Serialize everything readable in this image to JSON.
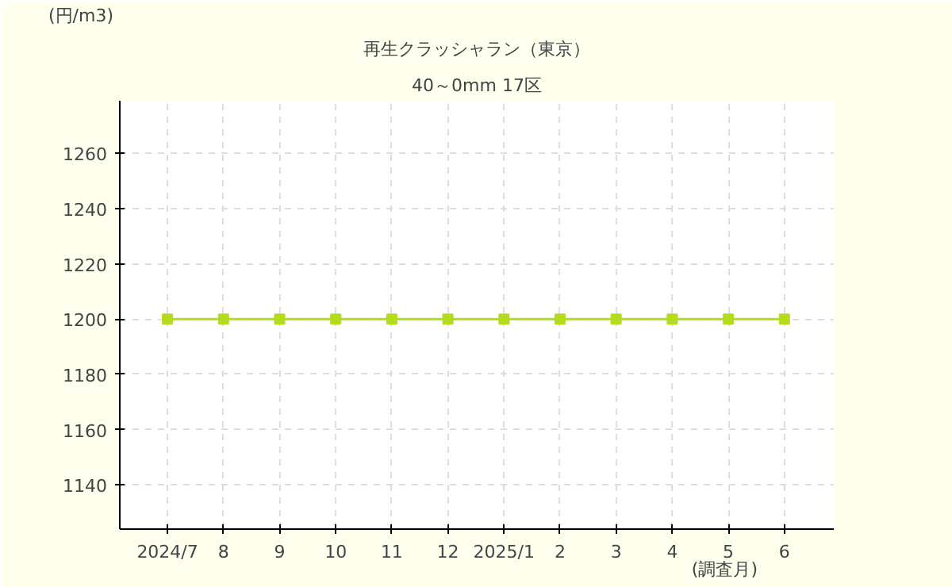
{
  "chart_data": {
    "type": "line",
    "title": "再生クラッシャラン（東京）",
    "subtitle": "40～0mm 17区",
    "ylabel": "(円/m3)",
    "xlabel": "(調査月)",
    "categories": [
      "2024/7",
      "8",
      "9",
      "10",
      "11",
      "12",
      "2025/1",
      "2",
      "3",
      "4",
      "5",
      "6"
    ],
    "series": [
      {
        "color": "#b4dc1e",
        "values": [
          1200,
          1200,
          1200,
          1200,
          1200,
          1200,
          1200,
          1200,
          1200,
          1200,
          1200,
          1200
        ]
      }
    ],
    "ylim": [
      1124,
      1279
    ],
    "yticks": [
      1140,
      1160,
      1180,
      1200,
      1220,
      1240,
      1260
    ],
    "grid": true,
    "marker": "square",
    "line_style": "solid"
  }
}
